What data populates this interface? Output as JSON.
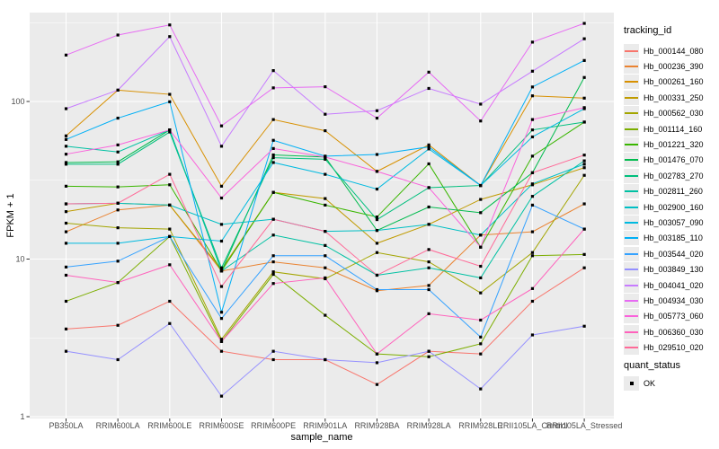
{
  "chart_data": {
    "type": "line",
    "title": "",
    "xlabel": "sample_name",
    "ylabel": "FPKM + 1",
    "y_scale": "log10",
    "y_ticks": [
      1,
      10,
      100
    ],
    "y_minor_ticks": [
      3.162,
      31.62,
      316.2
    ],
    "ylim": [
      1,
      366
    ],
    "grid": true,
    "panel_bg": "#EBEBEB",
    "grid_color": "#FFFFFF",
    "tick_label_color": "#4D4D4D",
    "marker": "black-square",
    "legend_position": "right",
    "legend_title": "tracking_id",
    "categories": [
      "PB350LA",
      "RRIM600LA",
      "RRIM600LE",
      "RRIM600SE",
      "RRIM600PE",
      "RRIM901LA",
      "RRIM928BA",
      "RRIM928LA",
      "RRIM928LE",
      "RRII105LA_Control",
      "RRII105LA_Stressed"
    ],
    "series": [
      {
        "name": "Hb_000144_080",
        "color": "#F8766D",
        "values": [
          3.6,
          3.8,
          5.4,
          2.6,
          2.3,
          2.3,
          1.6,
          2.6,
          2.5,
          5.4,
          8.8
        ]
      },
      {
        "name": "Hb_000236_390",
        "color": "#EA8331",
        "values": [
          14.9,
          20.5,
          22.0,
          8.4,
          9.6,
          8.8,
          6.3,
          6.8,
          14.2,
          14.9,
          22.4
        ]
      },
      {
        "name": "Hb_000261_160",
        "color": "#D89000",
        "values": [
          60.5,
          118.0,
          111.0,
          29.0,
          76.8,
          65.2,
          36.0,
          53.0,
          29.3,
          108.6,
          105.0
        ]
      },
      {
        "name": "Hb_000331_250",
        "color": "#C09B00",
        "values": [
          20.0,
          22.6,
          22.0,
          8.6,
          26.5,
          24.2,
          12.6,
          16.6,
          23.9,
          29.6,
          38.0
        ]
      },
      {
        "name": "Hb_000562_030",
        "color": "#A3A500",
        "values": [
          16.9,
          15.8,
          15.5,
          3.1,
          8.3,
          7.5,
          11.0,
          9.6,
          6.1,
          11.0,
          34.0
        ]
      },
      {
        "name": "Hb_001114_160",
        "color": "#7CAE00",
        "values": [
          5.4,
          7.1,
          13.9,
          3.0,
          8.0,
          4.4,
          2.5,
          2.4,
          2.9,
          10.5,
          10.7
        ]
      },
      {
        "name": "Hb_001221_320",
        "color": "#39B600",
        "values": [
          29.0,
          28.7,
          29.6,
          8.4,
          26.5,
          22.0,
          18.5,
          40.2,
          11.9,
          45.0,
          74.0
        ]
      },
      {
        "name": "Hb_001476_070",
        "color": "#00BB4E",
        "values": [
          41.0,
          41.4,
          66.0,
          8.4,
          45.8,
          44.4,
          15.2,
          21.4,
          19.7,
          35.3,
          142.0
        ]
      },
      {
        "name": "Hb_002783_270",
        "color": "#00BF7D",
        "values": [
          40.0,
          40.0,
          64.0,
          8.8,
          44.0,
          43.0,
          17.8,
          28.4,
          29.3,
          66.0,
          74.0
        ]
      },
      {
        "name": "Hb_002811_260",
        "color": "#00C1A3",
        "values": [
          52.0,
          47.8,
          66.0,
          8.4,
          14.2,
          12.2,
          7.9,
          8.8,
          7.6,
          25.0,
          42.0
        ]
      },
      {
        "name": "Hb_002900_160",
        "color": "#00BFC4",
        "values": [
          22.4,
          22.6,
          22.0,
          16.6,
          17.9,
          15.0,
          15.2,
          16.6,
          14.2,
          30.0,
          40.0
        ]
      },
      {
        "name": "Hb_003057_090",
        "color": "#00BAE0",
        "values": [
          12.6,
          12.6,
          13.9,
          13.0,
          41.0,
          34.5,
          27.8,
          50.0,
          29.3,
          59.6,
          90.0
        ]
      },
      {
        "name": "Hb_003185_110",
        "color": "#00B0F6",
        "values": [
          57.4,
          78.4,
          99.6,
          4.6,
          56.7,
          45.0,
          46.1,
          51.5,
          29.3,
          123.6,
          182.0
        ]
      },
      {
        "name": "Hb_003544_020",
        "color": "#35A2FF",
        "values": [
          8.9,
          9.7,
          13.9,
          4.2,
          10.5,
          10.5,
          6.4,
          6.4,
          3.2,
          22.0,
          15.5
        ]
      },
      {
        "name": "Hb_003849_130",
        "color": "#9590FF",
        "values": [
          2.6,
          2.3,
          3.9,
          1.35,
          2.6,
          2.3,
          2.2,
          2.6,
          1.5,
          3.3,
          3.75
        ]
      },
      {
        "name": "Hb_004041_020",
        "color": "#C77CFF",
        "values": [
          90.0,
          118.0,
          258.0,
          52.0,
          157.0,
          83.0,
          87.4,
          121.0,
          96.2,
          155.6,
          250.0
        ]
      },
      {
        "name": "Hb_004934_030",
        "color": "#E76BF3",
        "values": [
          197.0,
          264.0,
          306.0,
          70.0,
          122.0,
          124.0,
          78.4,
          153.5,
          75.2,
          238.0,
          313.0
        ]
      },
      {
        "name": "Hb_005773_060",
        "color": "#FA62DB",
        "values": [
          46.3,
          53.0,
          66.0,
          24.4,
          50.3,
          44.4,
          36.0,
          28.4,
          11.9,
          76.8,
          91.4
        ]
      },
      {
        "name": "Hb_006360_030",
        "color": "#FF62BC",
        "values": [
          7.9,
          7.1,
          9.2,
          3.0,
          7.0,
          7.6,
          2.5,
          4.5,
          4.1,
          6.5,
          15.5
        ]
      },
      {
        "name": "Hb_029510_020",
        "color": "#FF6A98",
        "values": [
          22.4,
          22.6,
          34.5,
          6.7,
          17.9,
          15.0,
          7.9,
          11.5,
          9.0,
          35.3,
          45.7
        ]
      }
    ],
    "quant_legend": {
      "title": "quant_status",
      "items": [
        {
          "label": "OK",
          "marker": "black-square"
        }
      ]
    }
  }
}
